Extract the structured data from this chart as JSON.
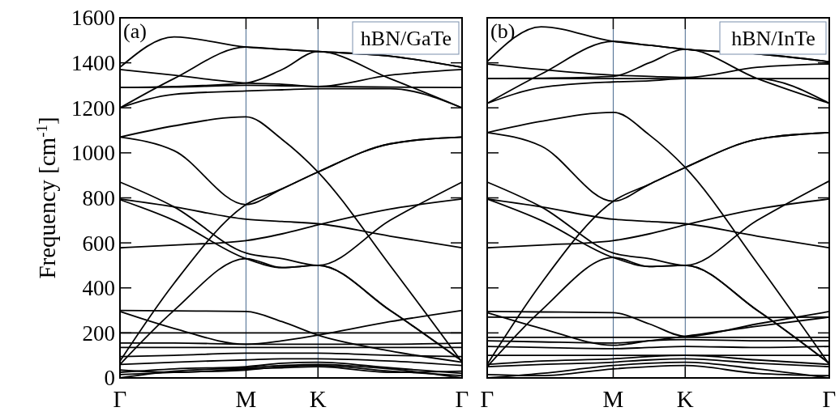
{
  "chart_data": [
    {
      "type": "line",
      "ylabel": "Frequency [cm$^{-1}$]",
      "annotations": [
        "(a)",
        "hBN/GaTe"
      ],
      "categories": [
        "Γ",
        null,
        null,
        null,
        null,
        null,
        null,
        "M",
        null,
        null,
        null,
        "K",
        null,
        null,
        null,
        null,
        null,
        null,
        null,
        "Γ"
      ],
      "ylim": [
        0,
        1600
      ],
      "yticks": [
        0,
        200,
        400,
        600,
        800,
        1000,
        1200,
        1400,
        1600
      ],
      "grid": false,
      "ref_lines": [
        {
          "axis": "x",
          "value": "M",
          "color": "#4a6a8f"
        },
        {
          "axis": "x",
          "value": "K",
          "color": "#4a6a8f"
        }
      ],
      "series": [
        {
          "color": "#000000",
          "values": [
            1380,
            null,
            null,
            1515,
            null,
            null,
            null,
            1470,
            null,
            1460,
            null,
            1450,
            null,
            null,
            null,
            1430,
            null,
            null,
            null,
            1380
          ]
        },
        {
          "color": "#000000",
          "values": [
            1370,
            null,
            null,
            1345,
            null,
            null,
            null,
            1310,
            null,
            1305,
            null,
            1295,
            null,
            null,
            null,
            1345,
            null,
            null,
            null,
            1370
          ]
        },
        {
          "color": "#000000",
          "values": [
            1290,
            null,
            null,
            1295,
            null,
            null,
            null,
            1310,
            null,
            1370,
            null,
            1450,
            null,
            null,
            null,
            1330,
            null,
            null,
            null,
            1200
          ]
        },
        {
          "color": "#000000",
          "values": [
            1200,
            null,
            null,
            1330,
            null,
            null,
            null,
            1470,
            null,
            1460,
            null,
            1450,
            null,
            null,
            null,
            1430,
            null,
            null,
            null,
            1380
          ]
        },
        {
          "color": "#000000",
          "values": [
            1200,
            null,
            null,
            1260,
            null,
            null,
            null,
            1275,
            null,
            1280,
            null,
            1285,
            null,
            null,
            null,
            1285,
            null,
            null,
            null,
            1200
          ]
        },
        {
          "color": "#000000",
          "values": [
            1290,
            null,
            null,
            1292,
            null,
            null,
            null,
            1300,
            null,
            1298,
            null,
            1295,
            null,
            null,
            null,
            1292,
            null,
            null,
            null,
            1290
          ]
        },
        {
          "color": "#000000",
          "values": [
            1070,
            null,
            null,
            1120,
            null,
            null,
            null,
            1160,
            null,
            1060,
            null,
            915,
            null,
            null,
            null,
            500,
            null,
            null,
            null,
            70
          ]
        },
        {
          "color": "#000000",
          "values": [
            1070,
            null,
            null,
            1010,
            null,
            null,
            null,
            770,
            null,
            840,
            null,
            915,
            null,
            null,
            null,
            1040,
            null,
            null,
            null,
            1070
          ]
        },
        {
          "color": "#000000",
          "values": [
            75,
            null,
            null,
            420,
            null,
            null,
            null,
            770,
            null,
            840,
            null,
            915,
            null,
            null,
            null,
            1040,
            null,
            null,
            null,
            1070
          ]
        },
        {
          "color": "#000000",
          "values": [
            870,
            null,
            null,
            760,
            null,
            null,
            null,
            555,
            null,
            530,
            null,
            500,
            null,
            null,
            null,
            700,
            null,
            null,
            null,
            870
          ]
        },
        {
          "color": "#000000",
          "values": [
            792,
            null,
            null,
            700,
            null,
            null,
            null,
            530,
            null,
            490,
            null,
            500,
            null,
            null,
            null,
            300,
            null,
            null,
            null,
            75
          ]
        },
        {
          "color": "#000000",
          "values": [
            60,
            null,
            null,
            300,
            null,
            null,
            null,
            530,
            null,
            490,
            null,
            500,
            null,
            null,
            null,
            300,
            null,
            null,
            null,
            75
          ]
        },
        {
          "color": "#000000",
          "values": [
            578,
            null,
            null,
            590,
            null,
            null,
            null,
            610,
            null,
            640,
            null,
            680,
            null,
            null,
            null,
            750,
            null,
            null,
            null,
            795
          ]
        },
        {
          "color": "#000000",
          "values": [
            795,
            null,
            null,
            760,
            null,
            null,
            null,
            705,
            null,
            695,
            null,
            685,
            null,
            null,
            null,
            630,
            null,
            null,
            null,
            578
          ]
        },
        {
          "color": "#000000",
          "values": [
            300,
            null,
            null,
            298,
            null,
            null,
            null,
            295,
            null,
            250,
            null,
            190,
            null,
            null,
            null,
            120,
            null,
            null,
            null,
            70
          ]
        },
        {
          "color": "#000000",
          "values": [
            295,
            null,
            null,
            220,
            null,
            null,
            null,
            150,
            null,
            165,
            null,
            190,
            null,
            null,
            null,
            250,
            null,
            null,
            null,
            300
          ]
        },
        {
          "color": "#000000",
          "values": [
            200,
            null,
            null,
            200,
            null,
            null,
            null,
            200,
            null,
            200,
            null,
            200,
            null,
            null,
            null,
            200,
            null,
            null,
            null,
            200
          ]
        },
        {
          "color": "#000000",
          "values": [
            155,
            null,
            null,
            155,
            null,
            null,
            null,
            150,
            null,
            150,
            null,
            150,
            null,
            null,
            null,
            150,
            null,
            null,
            null,
            155
          ]
        },
        {
          "color": "#000000",
          "values": [
            135,
            null,
            null,
            135,
            null,
            null,
            null,
            135,
            null,
            135,
            null,
            135,
            null,
            null,
            null,
            135,
            null,
            null,
            null,
            135
          ]
        },
        {
          "color": "#000000",
          "values": [
            95,
            null,
            null,
            100,
            null,
            null,
            null,
            110,
            null,
            110,
            null,
            110,
            null,
            null,
            null,
            100,
            null,
            null,
            null,
            95
          ]
        },
        {
          "color": "#000000",
          "values": [
            0,
            null,
            null,
            30,
            null,
            null,
            null,
            45,
            null,
            55,
            null,
            60,
            null,
            null,
            null,
            40,
            null,
            null,
            null,
            0
          ]
        },
        {
          "color": "#000000",
          "values": [
            15,
            null,
            null,
            25,
            null,
            null,
            null,
            35,
            null,
            50,
            null,
            55,
            null,
            null,
            null,
            30,
            null,
            null,
            null,
            10
          ]
        },
        {
          "color": "#000000",
          "values": [
            25,
            null,
            null,
            40,
            null,
            null,
            null,
            50,
            null,
            65,
            null,
            70,
            null,
            null,
            null,
            45,
            null,
            null,
            null,
            20
          ]
        },
        {
          "color": "#000000",
          "values": [
            60,
            null,
            null,
            70,
            null,
            null,
            null,
            80,
            null,
            85,
            null,
            85,
            null,
            null,
            null,
            75,
            null,
            null,
            null,
            55
          ]
        },
        {
          "color": "#000000",
          "values": [
            35,
            null,
            null,
            25,
            null,
            null,
            null,
            40,
            null,
            45,
            null,
            50,
            null,
            null,
            null,
            25,
            null,
            null,
            null,
            30
          ]
        }
      ]
    },
    {
      "type": "line",
      "annotations": [
        "(b)",
        "hBN/InTe"
      ],
      "tick_labels": "x",
      "categories": [
        "Γ",
        null,
        null,
        null,
        null,
        null,
        null,
        "M",
        null,
        null,
        null,
        "K",
        null,
        null,
        null,
        null,
        null,
        null,
        null,
        "Γ"
      ],
      "ylim": [
        0,
        1600
      ],
      "yticks": [
        0,
        200,
        400,
        600,
        800,
        1000,
        1200,
        1400,
        1600
      ],
      "grid": false,
      "ref_lines": [
        {
          "axis": "x",
          "value": "M",
          "color": "#4a6a8f"
        },
        {
          "axis": "x",
          "value": "K",
          "color": "#4a6a8f"
        }
      ],
      "series": [
        {
          "color": "#000000",
          "values": [
            1405,
            null,
            null,
            1560,
            null,
            null,
            null,
            1495,
            null,
            1478,
            null,
            1460,
            null,
            null,
            null,
            1440,
            null,
            null,
            null,
            1405
          ]
        },
        {
          "color": "#000000",
          "values": [
            1395,
            null,
            null,
            1370,
            null,
            null,
            null,
            1345,
            null,
            1340,
            null,
            1335,
            null,
            null,
            null,
            1380,
            null,
            null,
            null,
            1395
          ]
        },
        {
          "color": "#000000",
          "values": [
            1330,
            null,
            null,
            1332,
            null,
            null,
            null,
            1340,
            null,
            1400,
            null,
            1460,
            null,
            null,
            null,
            1330,
            null,
            null,
            null,
            1220
          ]
        },
        {
          "color": "#000000",
          "values": [
            1220,
            null,
            null,
            1350,
            null,
            null,
            null,
            1495,
            null,
            1478,
            null,
            1460,
            null,
            null,
            null,
            1440,
            null,
            null,
            null,
            1405
          ]
        },
        {
          "color": "#000000",
          "values": [
            1220,
            null,
            null,
            1290,
            null,
            null,
            null,
            1315,
            null,
            1320,
            null,
            1330,
            null,
            null,
            null,
            1330,
            null,
            null,
            null,
            1220
          ]
        },
        {
          "color": "#000000",
          "values": [
            1330,
            null,
            null,
            1330,
            null,
            null,
            null,
            1330,
            null,
            1330,
            null,
            1330,
            null,
            null,
            null,
            1330,
            null,
            null,
            null,
            1330
          ]
        },
        {
          "color": "#000000",
          "values": [
            1090,
            null,
            null,
            1140,
            null,
            null,
            null,
            1180,
            null,
            1080,
            null,
            935,
            null,
            null,
            null,
            510,
            null,
            null,
            null,
            60
          ]
        },
        {
          "color": "#000000",
          "values": [
            1090,
            null,
            null,
            1030,
            null,
            null,
            null,
            785,
            null,
            860,
            null,
            935,
            null,
            null,
            null,
            1060,
            null,
            null,
            null,
            1090
          ]
        },
        {
          "color": "#000000",
          "values": [
            60,
            null,
            null,
            420,
            null,
            null,
            null,
            785,
            null,
            860,
            null,
            935,
            null,
            null,
            null,
            1060,
            null,
            null,
            null,
            1090
          ]
        },
        {
          "color": "#000000",
          "values": [
            870,
            null,
            null,
            760,
            null,
            null,
            null,
            555,
            null,
            530,
            null,
            500,
            null,
            null,
            null,
            700,
            null,
            null,
            null,
            875
          ]
        },
        {
          "color": "#000000",
          "values": [
            795,
            null,
            null,
            700,
            null,
            null,
            null,
            535,
            null,
            495,
            null,
            500,
            null,
            null,
            null,
            300,
            null,
            null,
            null,
            65
          ]
        },
        {
          "color": "#000000",
          "values": [
            50,
            null,
            null,
            300,
            null,
            null,
            null,
            535,
            null,
            495,
            null,
            500,
            null,
            null,
            null,
            300,
            null,
            null,
            null,
            65
          ]
        },
        {
          "color": "#000000",
          "values": [
            578,
            null,
            null,
            590,
            null,
            null,
            null,
            610,
            null,
            640,
            null,
            680,
            null,
            null,
            null,
            750,
            null,
            null,
            null,
            795
          ]
        },
        {
          "color": "#000000",
          "values": [
            795,
            null,
            null,
            760,
            null,
            null,
            null,
            705,
            null,
            695,
            null,
            685,
            null,
            null,
            null,
            630,
            null,
            null,
            null,
            578
          ]
        },
        {
          "color": "#000000",
          "values": [
            295,
            null,
            null,
            293,
            null,
            null,
            null,
            290,
            null,
            240,
            null,
            185,
            null,
            null,
            null,
            240,
            null,
            null,
            null,
            295
          ]
        },
        {
          "color": "#000000",
          "values": [
            290,
            null,
            null,
            220,
            null,
            null,
            null,
            145,
            null,
            165,
            null,
            185,
            null,
            null,
            null,
            230,
            null,
            null,
            null,
            270
          ]
        },
        {
          "color": "#000000",
          "values": [
            270,
            null,
            null,
            268,
            null,
            null,
            null,
            268,
            null,
            268,
            null,
            268,
            null,
            null,
            null,
            268,
            null,
            null,
            null,
            270
          ]
        },
        {
          "color": "#000000",
          "values": [
            180,
            null,
            null,
            180,
            null,
            null,
            null,
            180,
            null,
            180,
            null,
            180,
            null,
            null,
            null,
            180,
            null,
            null,
            null,
            180
          ]
        },
        {
          "color": "#000000",
          "values": [
            165,
            null,
            null,
            160,
            null,
            null,
            null,
            155,
            null,
            165,
            null,
            170,
            null,
            null,
            null,
            165,
            null,
            null,
            null,
            165
          ]
        },
        {
          "color": "#000000",
          "values": [
            140,
            null,
            null,
            135,
            null,
            null,
            null,
            130,
            null,
            135,
            null,
            140,
            null,
            null,
            null,
            135,
            null,
            null,
            null,
            140
          ]
        },
        {
          "color": "#000000",
          "values": [
            100,
            null,
            null,
            100,
            null,
            null,
            null,
            100,
            null,
            100,
            null,
            100,
            null,
            null,
            null,
            100,
            null,
            null,
            null,
            100
          ]
        },
        {
          "color": "#000000",
          "values": [
            60,
            null,
            null,
            75,
            null,
            null,
            null,
            85,
            null,
            95,
            null,
            100,
            null,
            null,
            null,
            80,
            null,
            null,
            null,
            60
          ]
        },
        {
          "color": "#000000",
          "values": [
            50,
            null,
            null,
            60,
            null,
            null,
            null,
            70,
            null,
            80,
            null,
            85,
            null,
            null,
            null,
            65,
            null,
            null,
            null,
            50
          ]
        },
        {
          "color": "#000000",
          "values": [
            0,
            null,
            null,
            20,
            null,
            null,
            null,
            55,
            null,
            65,
            null,
            70,
            null,
            null,
            null,
            40,
            null,
            null,
            null,
            0
          ]
        },
        {
          "color": "#000000",
          "values": [
            15,
            null,
            null,
            10,
            null,
            null,
            null,
            40,
            null,
            50,
            null,
            55,
            null,
            null,
            null,
            20,
            null,
            null,
            null,
            10
          ]
        }
      ]
    }
  ]
}
